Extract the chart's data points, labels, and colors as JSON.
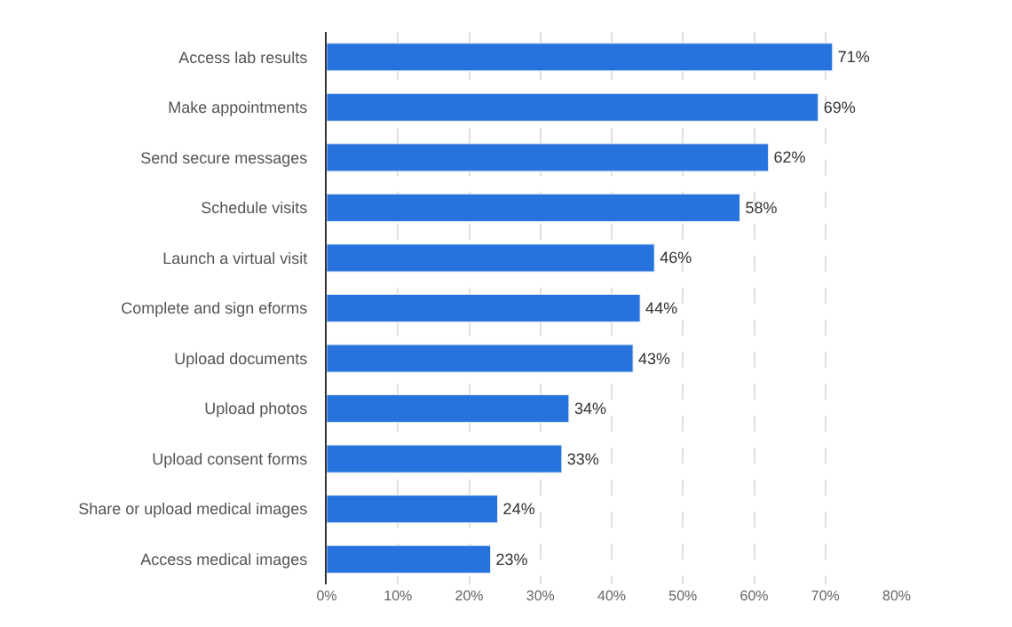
{
  "chart_data": {
    "type": "bar",
    "orientation": "horizontal",
    "categories": [
      "Access lab results",
      "Make appointments",
      "Send secure messages",
      "Schedule visits",
      "Launch a virtual visit",
      "Complete and sign eforms",
      "Upload documents",
      "Upload photos",
      "Upload consent forms",
      "Share or upload medical images",
      "Access medical images"
    ],
    "values": [
      71,
      69,
      62,
      58,
      46,
      44,
      43,
      34,
      33,
      24,
      23
    ],
    "value_labels": [
      "71%",
      "69%",
      "62%",
      "58%",
      "46%",
      "44%",
      "43%",
      "34%",
      "33%",
      "24%",
      "23%"
    ],
    "color": "#2673dd",
    "xlim": [
      0,
      80
    ],
    "xticks": [
      {
        "value": 0,
        "label": "0%"
      },
      {
        "value": 10,
        "label": "10%"
      },
      {
        "value": 20,
        "label": "20%"
      },
      {
        "value": 30,
        "label": "30%"
      },
      {
        "value": 40,
        "label": "40%"
      },
      {
        "value": 50,
        "label": "50%"
      },
      {
        "value": 60,
        "label": "60%"
      },
      {
        "value": 70,
        "label": "70%"
      },
      {
        "value": 80,
        "label": "80%"
      }
    ],
    "grid": "x"
  }
}
